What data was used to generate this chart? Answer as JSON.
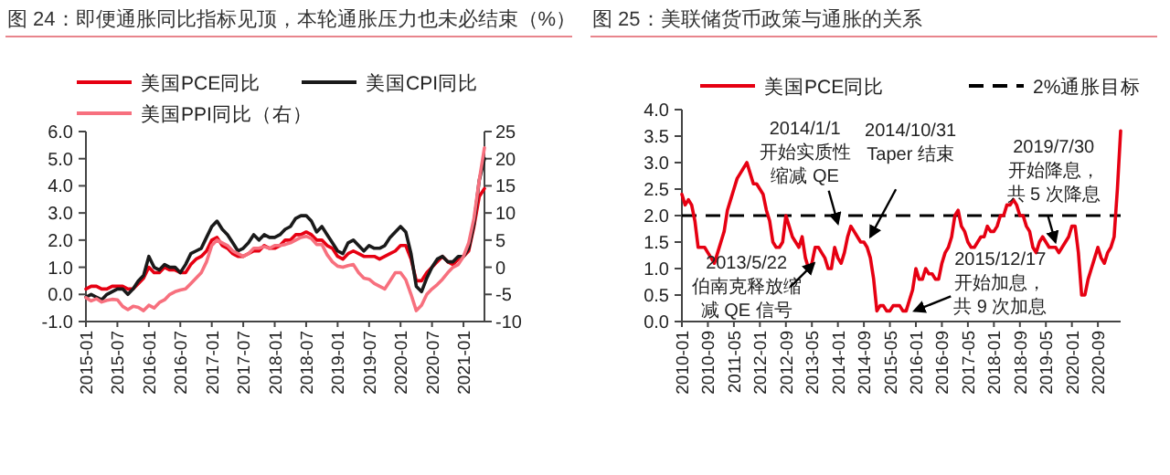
{
  "chart_data": [
    {
      "type": "line",
      "title": "图 24：即便通胀同比指标见顶，本轮通胀压力也未必结束（%）",
      "legend": "top",
      "x": [
        "2015-01",
        "2015-02",
        "2015-03",
        "2015-04",
        "2015-05",
        "2015-06",
        "2015-07",
        "2015-08",
        "2015-09",
        "2015-10",
        "2015-11",
        "2015-12",
        "2016-01",
        "2016-02",
        "2016-03",
        "2016-04",
        "2016-05",
        "2016-06",
        "2016-07",
        "2016-08",
        "2016-09",
        "2016-10",
        "2016-11",
        "2016-12",
        "2017-01",
        "2017-02",
        "2017-03",
        "2017-04",
        "2017-05",
        "2017-06",
        "2017-07",
        "2017-08",
        "2017-09",
        "2017-10",
        "2017-11",
        "2017-12",
        "2018-01",
        "2018-02",
        "2018-03",
        "2018-04",
        "2018-05",
        "2018-06",
        "2018-07",
        "2018-08",
        "2018-09",
        "2018-10",
        "2018-11",
        "2018-12",
        "2019-01",
        "2019-02",
        "2019-03",
        "2019-04",
        "2019-05",
        "2019-06",
        "2019-07",
        "2019-08",
        "2019-09",
        "2019-10",
        "2019-11",
        "2019-12",
        "2020-01",
        "2020-02",
        "2020-03",
        "2020-04",
        "2020-05",
        "2020-06",
        "2020-07",
        "2020-08",
        "2020-09",
        "2020-10",
        "2020-11",
        "2020-12",
        "2021-01",
        "2021-02",
        "2021-03",
        "2021-04",
        "2021-05"
      ],
      "xlim": [
        "2015-01",
        "2021-05"
      ],
      "xticks": [
        "2015-01",
        "2015-07",
        "2016-01",
        "2016-07",
        "2017-01",
        "2017-07",
        "2018-01",
        "2018-07",
        "2019-01",
        "2019-07",
        "2020-01",
        "2020-07",
        "2021-01"
      ],
      "ylim": [
        -1,
        6
      ],
      "yticks": [
        {
          "value": -1,
          "label": "-1.0"
        },
        {
          "value": 0,
          "label": "0.0"
        },
        {
          "value": 1,
          "label": "1.0"
        },
        {
          "value": 2,
          "label": "2.0"
        },
        {
          "value": 3,
          "label": "3.0"
        },
        {
          "value": 4,
          "label": "4.0"
        },
        {
          "value": 5,
          "label": "5.0"
        },
        {
          "value": 6,
          "label": "6.0"
        }
      ],
      "y2lim": [
        -10,
        25
      ],
      "y2ticks": [
        -10,
        -5,
        0,
        5,
        10,
        15,
        20,
        25
      ],
      "series": [
        {
          "name": "美国PCE同比",
          "color": "#e60012",
          "values": [
            0.2,
            0.3,
            0.3,
            0.2,
            0.2,
            0.3,
            0.3,
            0.3,
            0.2,
            0.2,
            0.4,
            0.6,
            1.0,
            0.8,
            0.8,
            1.0,
            0.9,
            0.9,
            0.8,
            0.8,
            1.1,
            1.3,
            1.4,
            1.6,
            2.0,
            2.1,
            1.8,
            1.7,
            1.5,
            1.4,
            1.4,
            1.5,
            1.6,
            1.6,
            1.8,
            1.7,
            1.7,
            1.8,
            2.0,
            2.0,
            2.2,
            2.2,
            2.3,
            2.2,
            2.0,
            2.0,
            1.8,
            1.7,
            1.4,
            1.3,
            1.5,
            1.6,
            1.5,
            1.4,
            1.4,
            1.4,
            1.3,
            1.4,
            1.5,
            1.6,
            1.8,
            1.8,
            1.3,
            0.5,
            0.5,
            0.8,
            1.0,
            1.2,
            1.4,
            1.2,
            1.1,
            1.3,
            1.4,
            1.6,
            2.5,
            3.6,
            3.9
          ]
        },
        {
          "name": "美国CPI同比",
          "color": "#1a1a1a",
          "values": [
            -0.1,
            0.0,
            -0.1,
            -0.2,
            0.0,
            0.1,
            0.2,
            0.2,
            0.0,
            0.2,
            0.5,
            0.7,
            1.4,
            1.0,
            0.9,
            1.1,
            1.0,
            1.0,
            0.8,
            1.1,
            1.5,
            1.6,
            1.7,
            2.1,
            2.5,
            2.7,
            2.4,
            2.2,
            1.9,
            1.6,
            1.7,
            1.9,
            2.2,
            2.0,
            2.2,
            2.1,
            2.1,
            2.2,
            2.4,
            2.5,
            2.8,
            2.9,
            2.9,
            2.7,
            2.3,
            2.5,
            2.2,
            1.9,
            1.6,
            1.5,
            1.9,
            2.0,
            1.8,
            1.6,
            1.8,
            1.7,
            1.7,
            1.8,
            2.1,
            2.3,
            2.5,
            2.3,
            1.5,
            0.3,
            0.1,
            0.6,
            1.0,
            1.3,
            1.4,
            1.2,
            1.2,
            1.4,
            1.4,
            1.7,
            2.6,
            4.2,
            5.0
          ]
        },
        {
          "name": "美国PPI同比（右）",
          "color": "#f7707e",
          "axis": "y2",
          "values": [
            -5.6,
            -6.2,
            -5.8,
            -6.4,
            -6.1,
            -5.9,
            -6.0,
            -7.2,
            -7.8,
            -7.2,
            -7.4,
            -8.0,
            -7.0,
            -7.5,
            -6.5,
            -6.0,
            -5.0,
            -4.5,
            -4.2,
            -4.0,
            -3.0,
            -2.0,
            -1.0,
            1.0,
            4.0,
            5.0,
            4.5,
            4.0,
            3.0,
            2.5,
            2.0,
            2.5,
            3.5,
            3.5,
            3.8,
            3.5,
            4.0,
            4.0,
            4.2,
            4.5,
            5.0,
            5.5,
            5.7,
            5.3,
            4.2,
            4.2,
            2.3,
            1.0,
            0.2,
            0.0,
            0.3,
            0.5,
            -1.0,
            -2.0,
            -2.2,
            -3.0,
            -3.5,
            -4.0,
            -2.5,
            -1.0,
            -1.0,
            -2.3,
            -5.0,
            -8.0,
            -7.0,
            -5.0,
            -4.0,
            -3.2,
            -2.2,
            -1.0,
            0.0,
            0.5,
            2.0,
            4.5,
            9.0,
            16.0,
            22.0
          ]
        }
      ]
    },
    {
      "type": "line",
      "title": "图 25：美联储货币政策与通胀的关系",
      "legend": "top",
      "x": [
        "2010-01",
        "2010-02",
        "2010-03",
        "2010-04",
        "2010-05",
        "2010-06",
        "2010-07",
        "2010-08",
        "2010-09",
        "2010-10",
        "2010-11",
        "2010-12",
        "2011-01",
        "2011-02",
        "2011-03",
        "2011-04",
        "2011-05",
        "2011-06",
        "2011-07",
        "2011-08",
        "2011-09",
        "2011-10",
        "2011-11",
        "2011-12",
        "2012-01",
        "2012-02",
        "2012-03",
        "2012-04",
        "2012-05",
        "2012-06",
        "2012-07",
        "2012-08",
        "2012-09",
        "2012-10",
        "2012-11",
        "2012-12",
        "2013-01",
        "2013-02",
        "2013-03",
        "2013-04",
        "2013-05",
        "2013-06",
        "2013-07",
        "2013-08",
        "2013-09",
        "2013-10",
        "2013-11",
        "2013-12",
        "2014-01",
        "2014-02",
        "2014-03",
        "2014-04",
        "2014-05",
        "2014-06",
        "2014-07",
        "2014-08",
        "2014-09",
        "2014-10",
        "2014-11",
        "2014-12",
        "2015-01",
        "2015-02",
        "2015-03",
        "2015-04",
        "2015-05",
        "2015-06",
        "2015-07",
        "2015-08",
        "2015-09",
        "2015-10",
        "2015-11",
        "2015-12",
        "2016-01",
        "2016-02",
        "2016-03",
        "2016-04",
        "2016-05",
        "2016-06",
        "2016-07",
        "2016-08",
        "2016-09",
        "2016-10",
        "2016-11",
        "2016-12",
        "2017-01",
        "2017-02",
        "2017-03",
        "2017-04",
        "2017-05",
        "2017-06",
        "2017-07",
        "2017-08",
        "2017-09",
        "2017-10",
        "2017-11",
        "2017-12",
        "2018-01",
        "2018-02",
        "2018-03",
        "2018-04",
        "2018-05",
        "2018-06",
        "2018-07",
        "2018-08",
        "2018-09",
        "2018-10",
        "2018-11",
        "2018-12",
        "2019-01",
        "2019-02",
        "2019-03",
        "2019-04",
        "2019-05",
        "2019-06",
        "2019-07",
        "2019-08",
        "2019-09",
        "2019-10",
        "2019-11",
        "2019-12",
        "2020-01",
        "2020-02",
        "2020-03",
        "2020-04",
        "2020-05",
        "2020-06",
        "2020-07",
        "2020-08",
        "2020-09",
        "2020-10",
        "2020-11",
        "2020-12",
        "2021-01",
        "2021-02",
        "2021-03",
        "2021-04"
      ],
      "xlim": [
        "2010-01",
        "2021-04"
      ],
      "xticks": [
        "2010-01",
        "2010-09",
        "2011-05",
        "2012-01",
        "2012-09",
        "2013-05",
        "2014-01",
        "2014-09",
        "2015-05",
        "2016-01",
        "2016-09",
        "2017-05",
        "2018-01",
        "2018-09",
        "2019-05",
        "2020-01",
        "2020-09"
      ],
      "ylim": [
        0,
        4
      ],
      "yticks": [
        {
          "value": 0,
          "label": "0.0"
        },
        {
          "value": 0.5,
          "label": "0.5"
        },
        {
          "value": 1,
          "label": "1.0"
        },
        {
          "value": 1.5,
          "label": "1.5"
        },
        {
          "value": 2,
          "label": "2.0"
        },
        {
          "value": 2.5,
          "label": "2.5"
        },
        {
          "value": 3,
          "label": "3.0"
        },
        {
          "value": 3.5,
          "label": "3.5"
        },
        {
          "value": 4,
          "label": "4.0"
        }
      ],
      "ref_lines": [
        {
          "axis": "y",
          "value": 2,
          "label": "2%通胀目标",
          "color": "#000000",
          "line_style": "dashed"
        }
      ],
      "series": [
        {
          "name": "美国PCE同比",
          "color": "#e60012",
          "values": [
            2.4,
            2.2,
            2.3,
            2.2,
            1.9,
            1.4,
            1.4,
            1.4,
            1.3,
            1.2,
            1.1,
            1.3,
            1.5,
            1.7,
            2.1,
            2.3,
            2.5,
            2.7,
            2.8,
            2.9,
            3.0,
            2.8,
            2.6,
            2.6,
            2.5,
            2.4,
            2.1,
            1.9,
            1.5,
            1.4,
            1.4,
            1.5,
            2.0,
            1.8,
            1.6,
            1.5,
            1.4,
            1.6,
            1.2,
            1.0,
            1.1,
            1.4,
            1.4,
            1.3,
            1.2,
            1.0,
            1.0,
            1.4,
            1.2,
            1.1,
            1.3,
            1.6,
            1.8,
            1.7,
            1.6,
            1.5,
            1.5,
            1.4,
            1.2,
            0.8,
            0.2,
            0.3,
            0.3,
            0.2,
            0.2,
            0.3,
            0.3,
            0.3,
            0.2,
            0.2,
            0.4,
            0.6,
            1.0,
            0.8,
            0.8,
            1.0,
            0.9,
            0.9,
            0.8,
            0.8,
            1.1,
            1.3,
            1.4,
            1.6,
            2.0,
            2.1,
            1.8,
            1.7,
            1.5,
            1.4,
            1.4,
            1.5,
            1.6,
            1.6,
            1.8,
            1.7,
            1.7,
            1.8,
            2.0,
            2.0,
            2.2,
            2.2,
            2.3,
            2.2,
            2.0,
            2.0,
            1.8,
            1.7,
            1.4,
            1.3,
            1.5,
            1.6,
            1.5,
            1.4,
            1.4,
            1.4,
            1.3,
            1.4,
            1.5,
            1.6,
            1.8,
            1.8,
            1.3,
            0.5,
            0.5,
            0.8,
            1.0,
            1.2,
            1.4,
            1.2,
            1.1,
            1.3,
            1.4,
            1.6,
            2.5,
            3.6
          ]
        }
      ],
      "annotations": [
        {
          "text": "2013/5/22\n伯南克释放缩减 QE 信号",
          "x": "2013-05-22",
          "y": 1.1
        },
        {
          "text": "2014/1/1\n开始实质性缩减 QE",
          "x": "2014-01-01",
          "y": 1.85
        },
        {
          "text": "2014/10/31\nTaper 结束",
          "x": "2014-10-31",
          "y": 1.6
        },
        {
          "text": "2015/12/17\n开始加息，共 9 次加息",
          "x": "2015-12-17",
          "y": 0.2
        },
        {
          "text": "2019/7/30\n开始降息，共 5 次降息",
          "x": "2019-07-30",
          "y": 1.5
        }
      ]
    }
  ]
}
